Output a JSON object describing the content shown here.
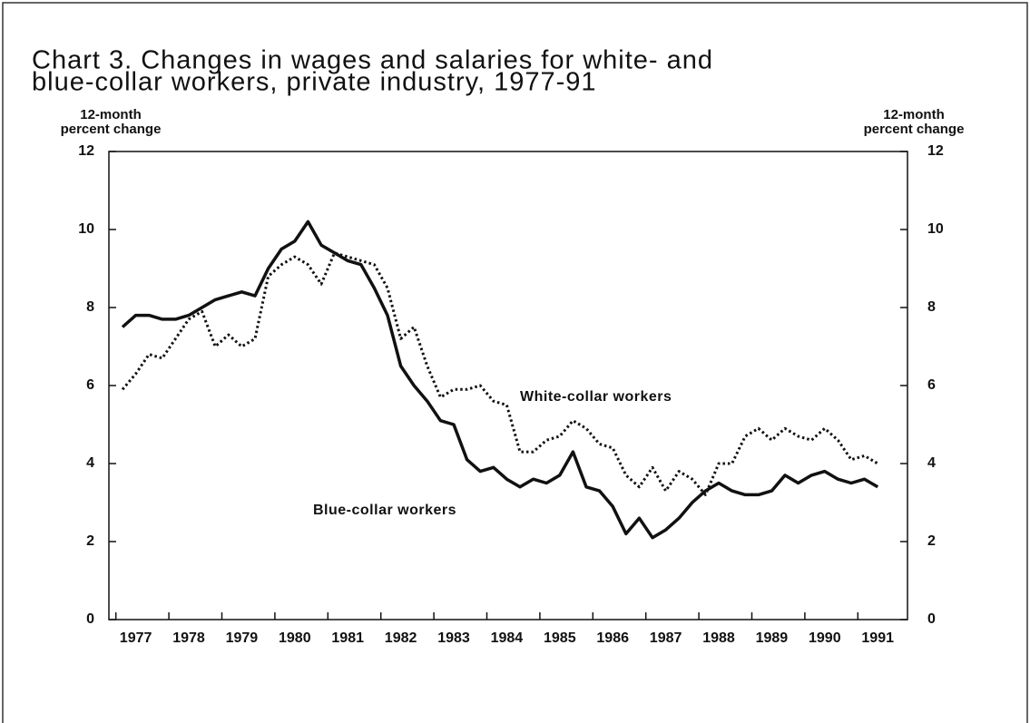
{
  "chart_data": {
    "type": "line",
    "title": [
      "Chart 3. Changes in wages and salaries for white- and",
      "blue-collar workers, private industry, 1977-91"
    ],
    "ylabel": [
      "12-month",
      "percent change"
    ],
    "y2label": [
      "12-month",
      "percent change"
    ],
    "categories": [
      null,
      "1977",
      null,
      null,
      null,
      "1978",
      null,
      null,
      null,
      "1979",
      null,
      null,
      null,
      "1980",
      null,
      null,
      null,
      "1981",
      null,
      null,
      null,
      "1982",
      null,
      null,
      null,
      "1983",
      null,
      null,
      null,
      "1984",
      null,
      null,
      null,
      "1985",
      null,
      null,
      null,
      "1986",
      null,
      null,
      null,
      "1987",
      null,
      null,
      null,
      "1988",
      null,
      null,
      null,
      "1989",
      null,
      null,
      null,
      "1990",
      null,
      null,
      null,
      "1991"
    ],
    "ylim": [
      0,
      12
    ],
    "yticks": [
      0,
      2,
      4,
      6,
      8,
      10,
      12
    ],
    "y2lim": [
      0,
      12
    ],
    "y2ticks": [
      0,
      2,
      4,
      6,
      8,
      10,
      12
    ],
    "series": [
      {
        "name": "Blue-collar workers",
        "color": "#111111",
        "style": "solid",
        "values": [
          7.5,
          7.8,
          7.8,
          7.7,
          7.7,
          7.8,
          8.0,
          8.2,
          8.3,
          8.4,
          8.3,
          9.0,
          9.5,
          9.7,
          10.2,
          9.6,
          9.4,
          9.2,
          9.1,
          8.5,
          7.8,
          6.5,
          6.0,
          5.6,
          5.1,
          5.0,
          4.1,
          3.8,
          3.9,
          3.6,
          3.4,
          3.6,
          3.5,
          3.7,
          4.3,
          3.4,
          3.3,
          2.9,
          2.2,
          2.6,
          2.1,
          2.3,
          2.6,
          3.0,
          3.3,
          3.5,
          3.3,
          3.2,
          3.2,
          3.3,
          3.7,
          3.5,
          3.7,
          3.8,
          3.6,
          3.5,
          3.6,
          3.4
        ]
      },
      {
        "name": "White-collar workers",
        "color": "#111111",
        "style": "dotted",
        "values": [
          5.9,
          6.3,
          6.8,
          6.7,
          7.2,
          7.7,
          7.9,
          7.0,
          7.3,
          7.0,
          7.2,
          8.8,
          9.1,
          9.3,
          9.1,
          8.6,
          9.4,
          9.3,
          9.2,
          9.1,
          8.5,
          7.2,
          7.5,
          6.5,
          5.7,
          5.9,
          5.9,
          6.0,
          5.6,
          5.5,
          4.3,
          4.3,
          4.6,
          4.7,
          5.1,
          4.9,
          4.5,
          4.4,
          3.7,
          3.4,
          3.9,
          3.3,
          3.8,
          3.6,
          3.2,
          4.0,
          4.0,
          4.7,
          4.9,
          4.6,
          4.9,
          4.7,
          4.6,
          4.9,
          4.6,
          4.1,
          4.2,
          4.0
        ]
      }
    ]
  }
}
